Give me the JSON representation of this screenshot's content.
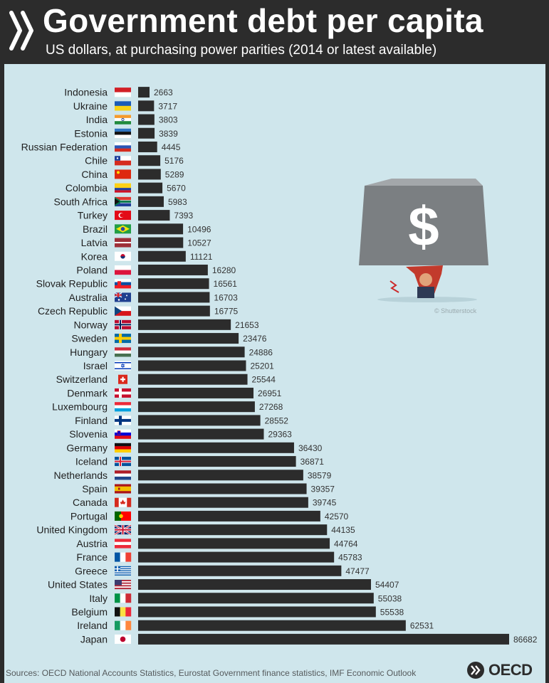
{
  "header": {
    "title": "Government debt per capita",
    "subtitle": "US dollars, at purchasing power parities (2014 or latest available)"
  },
  "footer": {
    "sources": "Sources: OECD National Accounts Statistics, Eurostat Government finance statistics, IMF Economic Outlook",
    "logo_text": "OECD"
  },
  "illustration": {
    "symbol": "$",
    "credit": "© Shutterstock"
  },
  "colors": {
    "bar": "#2c2c2c",
    "background": "#cfe6ec",
    "header": "#2c2c2c",
    "text": "#1f1f1f"
  },
  "chart_data": {
    "type": "bar",
    "orientation": "horizontal",
    "title": "Government debt per capita",
    "subtitle": "US dollars, at purchasing power parities (2014 or latest available)",
    "xlabel": "",
    "ylabel": "",
    "xlim": [
      0,
      86682
    ],
    "grid": false,
    "legend": "none",
    "categories": [
      "Indonesia",
      "Ukraine",
      "India",
      "Estonia",
      "Russian Federation",
      "Chile",
      "China",
      "Colombia",
      "South Africa",
      "Turkey",
      "Brazil",
      "Latvia",
      "Korea",
      "Poland",
      "Slovak Republic",
      "Australia",
      "Czech Republic",
      "Norway",
      "Sweden",
      "Hungary",
      "Israel",
      "Switzerland",
      "Denmark",
      "Luxembourg",
      "Finland",
      "Slovenia",
      "Germany",
      "Iceland",
      "Netherlands",
      "Spain",
      "Canada",
      "Portugal",
      "United Kingdom",
      "Austria",
      "France",
      "Greece",
      "United States",
      "Italy",
      "Belgium",
      "Ireland",
      "Japan"
    ],
    "values": [
      2663,
      3717,
      3803,
      3839,
      4445,
      5176,
      5289,
      5670,
      5983,
      7393,
      10496,
      10527,
      11121,
      16280,
      16561,
      16703,
      16775,
      21653,
      23476,
      24886,
      25201,
      25544,
      26951,
      27268,
      28552,
      29363,
      36430,
      36871,
      38579,
      39357,
      39745,
      42570,
      44135,
      44764,
      45783,
      47477,
      54407,
      55038,
      55538,
      62531,
      86682
    ],
    "value_labels": [
      "2663",
      "3717",
      "3803",
      "3839",
      "4445",
      "5176",
      "5289",
      "5670",
      "5983",
      "7393",
      "10496",
      "10527",
      "11121",
      "16280",
      "16561",
      "16703",
      "16775",
      "21653",
      "23476",
      "24886",
      "25201",
      "25544",
      "26951",
      "27268",
      "28552",
      "29363",
      "36430",
      "36871",
      "38579",
      "39357",
      "39745",
      "42570",
      "44135",
      "44764",
      "45783",
      "47477",
      "54407",
      "55038",
      "55538",
      "62531",
      "86682"
    ],
    "flags": [
      "indonesia-flag-icon",
      "ukraine-flag-icon",
      "india-flag-icon",
      "estonia-flag-icon",
      "russia-flag-icon",
      "chile-flag-icon",
      "china-flag-icon",
      "colombia-flag-icon",
      "south-africa-flag-icon",
      "turkey-flag-icon",
      "brazil-flag-icon",
      "latvia-flag-icon",
      "korea-flag-icon",
      "poland-flag-icon",
      "slovakia-flag-icon",
      "australia-flag-icon",
      "czech-flag-icon",
      "norway-flag-icon",
      "sweden-flag-icon",
      "hungary-flag-icon",
      "israel-flag-icon",
      "switzerland-flag-icon",
      "denmark-flag-icon",
      "luxembourg-flag-icon",
      "finland-flag-icon",
      "slovenia-flag-icon",
      "germany-flag-icon",
      "iceland-flag-icon",
      "netherlands-flag-icon",
      "spain-flag-icon",
      "canada-flag-icon",
      "portugal-flag-icon",
      "uk-flag-icon",
      "austria-flag-icon",
      "france-flag-icon",
      "greece-flag-icon",
      "usa-flag-icon",
      "italy-flag-icon",
      "belgium-flag-icon",
      "ireland-flag-icon",
      "japan-flag-icon"
    ]
  }
}
